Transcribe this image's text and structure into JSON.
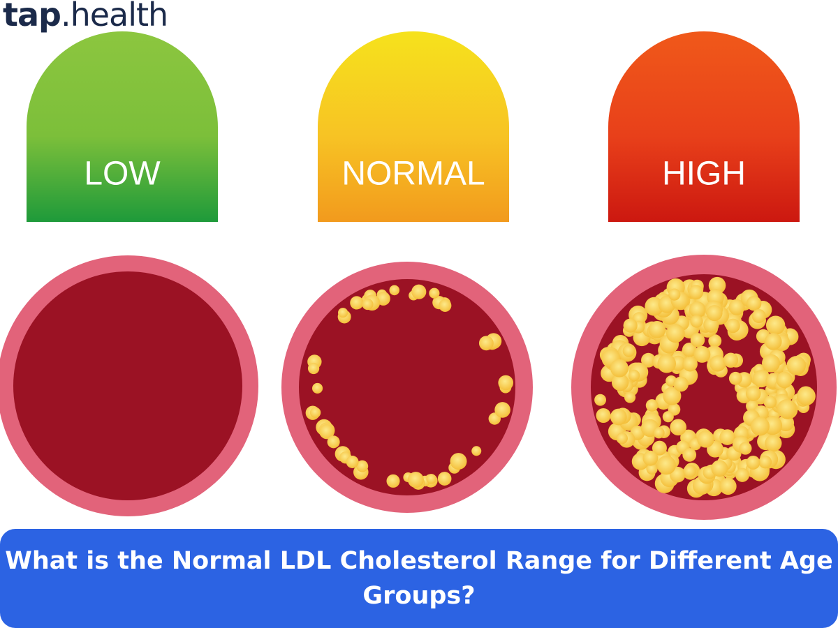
{
  "logo": {
    "brand": "tap",
    "suffix": ".health"
  },
  "levels": [
    {
      "label": "LOW"
    },
    {
      "label": "NORMAL"
    },
    {
      "label": "HIGH"
    }
  ],
  "banner": {
    "title": "What is the Normal LDL Cholesterol Range for Different Age Groups?"
  }
}
